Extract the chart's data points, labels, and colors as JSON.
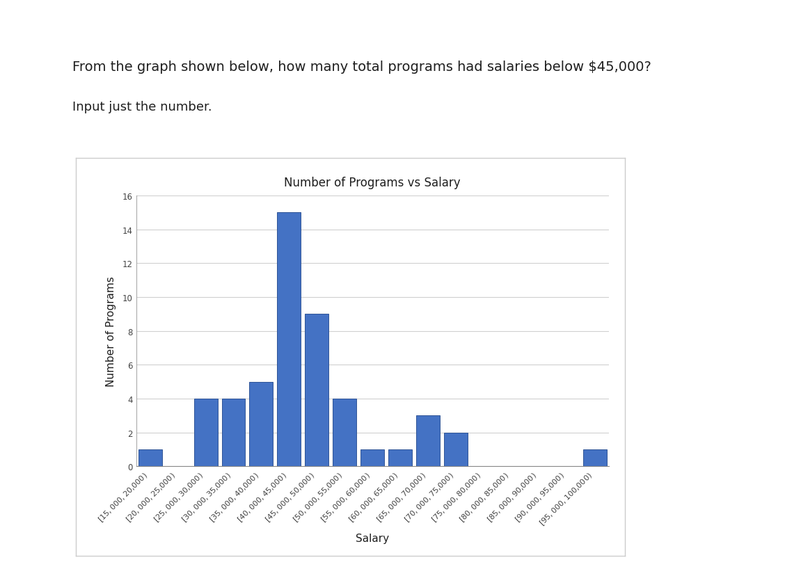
{
  "title": "Number of Programs vs Salary",
  "xlabel": "Salary",
  "ylabel": "Number of Programs",
  "question_line1": "From the graph shown below, how many total programs had salaries below $45,000?",
  "question_line2": "Input just the number.",
  "categories": [
    "[$15,000, $20,000)",
    "[$20,000, $25,000)",
    "[$25,000, $30,000)",
    "[$30,000, $35,000)",
    "[$35,000, $40,000)",
    "[$40,000, $45,000)",
    "[$45,000, $50,000)",
    "[$50,000, $55,000)",
    "[$55,000, $60,000)",
    "[$60,000, $65,000)",
    "[$65,000, $70,000)",
    "[$70,000, $75,000)",
    "[$75,000, $80,000)",
    "[$80,000, $85,000)",
    "[$85,000, $90,000)",
    "[$90,000, $95,000)",
    "[$95,000, $100,000)"
  ],
  "values": [
    1,
    0,
    4,
    4,
    5,
    15,
    9,
    4,
    1,
    1,
    3,
    2,
    0,
    0,
    0,
    0,
    1
  ],
  "bar_color": "#4472C4",
  "bar_edge_color": "#2F5496",
  "ylim": [
    0,
    16
  ],
  "yticks": [
    0,
    2,
    4,
    6,
    8,
    10,
    12,
    14,
    16
  ],
  "page_bg": "#FFFFFF",
  "chart_bg": "#FFFFFF",
  "chart_border": "#CCCCCC",
  "grid_color": "#D0D0D0",
  "title_fontsize": 12,
  "axis_label_fontsize": 11,
  "tick_fontsize": 8,
  "question_fontsize": 14,
  "sub_fontsize": 13,
  "text_color": "#1F1F1F"
}
